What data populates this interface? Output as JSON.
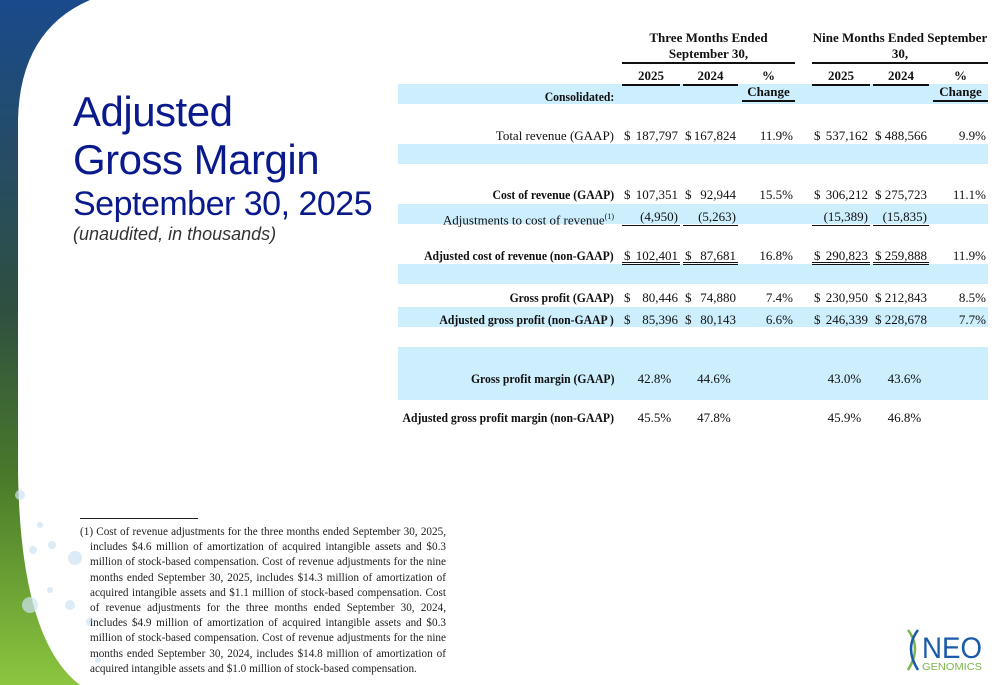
{
  "title": {
    "line1": "Adjusted",
    "line2": "Gross Margin",
    "date": "September 30, 2025",
    "note": "(unaudited, in thousands)"
  },
  "table": {
    "group_headers": [
      "Three Months Ended September 30,",
      "Nine Months Ended September 30,"
    ],
    "col_headers": [
      "2025",
      "2024",
      "% Change",
      "2025",
      "2024",
      "% Change"
    ],
    "section": "Consolidated:",
    "rows": [
      {
        "label": "Total revenue (GAAP)",
        "values": [
          "$|187,797",
          "$|167,824",
          "11.9%",
          "$|537,162",
          "$|488,566",
          "9.9%"
        ]
      },
      {
        "label": "Cost of revenue (GAAP)",
        "values": [
          "$|107,351",
          "$|92,944",
          "15.5%",
          "$|306,212",
          "$|275,723",
          "11.1%"
        ]
      },
      {
        "label": "Adjustments to cost of revenue",
        "footnote": "(1)",
        "values": [
          "|(4,950)",
          "|(5,263)",
          "",
          "|(15,389)",
          "|(15,835)",
          ""
        ]
      },
      {
        "label": "Adjusted cost of revenue (non-GAAP)",
        "values": [
          "$|102,401",
          "$|87,681",
          "16.8%",
          "$|290,823",
          "$|259,888",
          "11.9%"
        ]
      },
      {
        "label": "Gross profit (GAAP)",
        "values": [
          "$|80,446",
          "$|74,880",
          "7.4%",
          "$|230,950",
          "$|212,843",
          "8.5%"
        ]
      },
      {
        "label": "Adjusted gross profit (non-GAAP )",
        "values": [
          "$|85,396",
          "$|80,143",
          "6.6%",
          "$|246,339",
          "$|228,678",
          "7.7%"
        ]
      },
      {
        "label": "Gross profit margin (GAAP)",
        "values": [
          "|42.8%",
          "|44.6%",
          "",
          "|43.0%",
          "|43.6%",
          ""
        ]
      },
      {
        "label": "Adjusted gross profit margin (non-GAAP)",
        "values": [
          "|45.5%",
          "|47.8%",
          "",
          "|45.9%",
          "|46.8%",
          ""
        ]
      }
    ]
  },
  "footnote": "(1) Cost of revenue adjustments for the three months ended September 30, 2025, includes $4.6 million of amortization of acquired intangible assets and $0.3 million of stock-based compensation. Cost of revenue adjustments for the nine months ended September 30, 2025, includes $14.3 million of amortization of acquired intangible assets and $1.1 million of stock-based compensation. Cost of revenue adjustments for the three months ended September 30, 2024, includes $4.9 million of amortization of acquired intangible assets and $0.3 million of stock-based compensation. Cost of revenue adjustments for the nine months ended September 30, 2024, includes $14.8 million of amortization of acquired intangible assets and $1.0 million of stock-based compensation.",
  "logo": {
    "name": "NEO",
    "sub": "GENOMICS"
  },
  "colors": {
    "title": "#0a1a8c",
    "shade": "#cdeefd",
    "blue": "#1a4a8c",
    "green": "#7ab648"
  }
}
